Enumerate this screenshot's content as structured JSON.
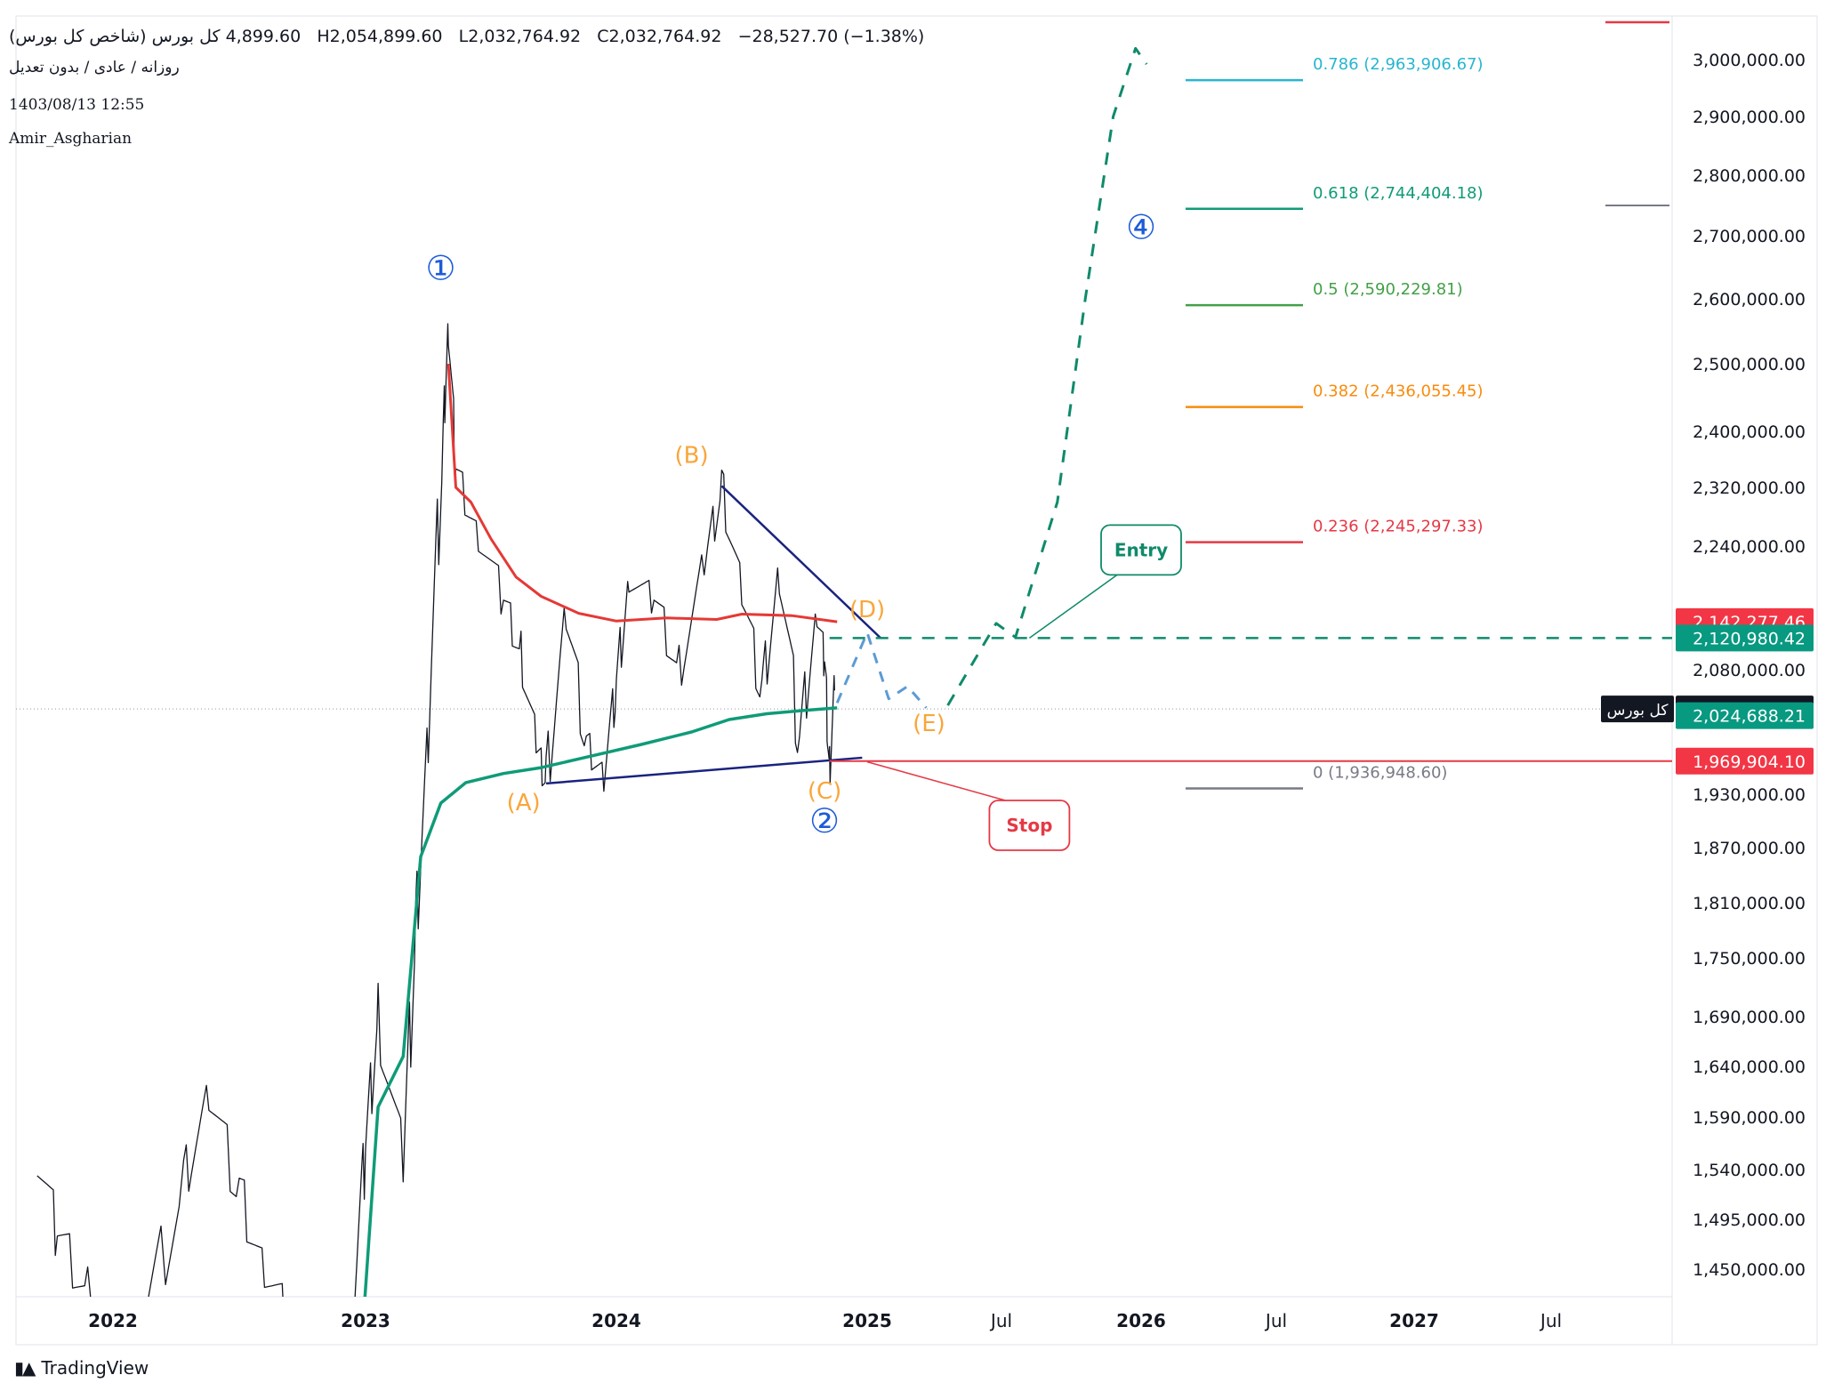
{
  "header": {
    "symbol": "کل بورس (شاخص کل بورس)",
    "open": "4,899.60",
    "high": "H2,054,899.60",
    "low": "L2,032,764.92",
    "close": "C2,032,764.92",
    "change": "−28,527.70 (−1.38%)",
    "subtitle": "روزانه / عادی / بدون تعدیل",
    "date": "1403/08/13 12:55",
    "author": "Amir_Asgharian"
  },
  "brand": {
    "name": "TradingView",
    "logo_icon": "tradingview-logo-icon"
  },
  "colors": {
    "price": "#131722",
    "red_ma": "#e53935",
    "green_ma": "#0f9b78",
    "trendline": "#1a237e",
    "projection": "#0f8a6a",
    "alt_path": "#5b9bd5",
    "wave_label": "#f9a63a",
    "count_label": "#1e5bd8",
    "stop": "#e53945"
  },
  "chart_data": {
    "type": "line",
    "axis": {
      "ylim": [
        1420000,
        3040000
      ],
      "grid": false,
      "position": "right"
    },
    "y_ticks": [
      "3,000,000.00",
      "2,900,000.00",
      "2,800,000.00",
      "2,700,000.00",
      "2,600,000.00",
      "2,500,000.00",
      "2,400,000.00",
      "2,320,000.00",
      "2,240,000.00",
      "2,080,000.00",
      "1,930,000.00",
      "1,870,000.00",
      "1,810,000.00",
      "1,750,000.00",
      "1,690,000.00",
      "1,640,000.00",
      "1,590,000.00",
      "1,540,000.00",
      "1,495,000.00",
      "1,450,000.00"
    ],
    "x_ticks": [
      "2022",
      "2023",
      "2024",
      "2025",
      "Jul",
      "2026",
      "Jul",
      "2027",
      "Jul"
    ],
    "price_labels": [
      {
        "text": "2,142,277.46",
        "y": 2142277.46,
        "color": "#f23645"
      },
      {
        "text": "2,120,980.42",
        "y": 2120980.42,
        "color": "#089981"
      },
      {
        "text": "2,032,764.92",
        "y": 2032764.92,
        "color": "#131722",
        "symbol": "کل بورس"
      },
      {
        "text": "2,024,688.21",
        "y": 2024688.21,
        "color": "#089981"
      },
      {
        "text": "1,969,904.10",
        "y": 1969904.1,
        "color": "#f23645"
      }
    ],
    "fib_levels": [
      {
        "label": "0.786 (2,963,906.67)",
        "value": 2963906.67,
        "color": "#26b6cf"
      },
      {
        "label": "0.618 (2,744,404.18)",
        "value": 2744404.18,
        "color": "#0f9b78"
      },
      {
        "label": "0.5 (2,590,229.81)",
        "value": 2590229.81,
        "color": "#43a047"
      },
      {
        "label": "0.382 (2,436,055.45)",
        "value": 2436055.45,
        "color": "#f98b0c"
      },
      {
        "label": "0.236 (2,245,297.33)",
        "value": 2245297.33,
        "color": "#e53945"
      },
      {
        "label": "0 (1,936,948.60)",
        "value": 1936948.6,
        "color": "#787b86"
      }
    ],
    "series": [
      {
        "name": "price",
        "values": [
          [
            2021.7,
            1560000
          ],
          [
            2021.78,
            1480000
          ],
          [
            2021.9,
            1430000
          ],
          [
            2022.1,
            1380000
          ],
          [
            2022.28,
            1530000
          ],
          [
            2022.38,
            1610000
          ],
          [
            2022.5,
            1520000
          ],
          [
            2022.6,
            1450000
          ],
          [
            2022.7,
            1400000
          ],
          [
            2022.95,
            1420000
          ],
          [
            2023.0,
            1560000
          ],
          [
            2023.05,
            1690000
          ],
          [
            2023.15,
            1540000
          ],
          [
            2023.2,
            1780000
          ],
          [
            2023.25,
            2000000
          ],
          [
            2023.31,
            2400000
          ],
          [
            2023.33,
            2560000
          ],
          [
            2023.36,
            2340000
          ],
          [
            2023.45,
            2260000
          ],
          [
            2023.55,
            2170000
          ],
          [
            2023.62,
            2100000
          ],
          [
            2023.68,
            1985000
          ],
          [
            2023.72,
            1945000
          ],
          [
            2023.8,
            2150000
          ],
          [
            2023.88,
            1990000
          ],
          [
            2023.95,
            1955000
          ],
          [
            2024.0,
            2060000
          ],
          [
            2024.05,
            2200000
          ],
          [
            2024.15,
            2170000
          ],
          [
            2024.25,
            2080000
          ],
          [
            2024.35,
            2210000
          ],
          [
            2024.42,
            2320000
          ],
          [
            2024.5,
            2180000
          ],
          [
            2024.58,
            2050000
          ],
          [
            2024.65,
            2210000
          ],
          [
            2024.73,
            1990000
          ],
          [
            2024.8,
            2160000
          ],
          [
            2024.83,
            2090000
          ],
          [
            2024.85,
            1960000
          ],
          [
            2024.87,
            2055000
          ]
        ]
      },
      {
        "name": "red-ma",
        "values": [
          [
            2023.33,
            2500000
          ],
          [
            2023.36,
            2320000
          ],
          [
            2023.42,
            2300000
          ],
          [
            2023.5,
            2250000
          ],
          [
            2023.6,
            2200000
          ],
          [
            2023.7,
            2175000
          ],
          [
            2023.85,
            2153000
          ],
          [
            2024.0,
            2143000
          ],
          [
            2024.2,
            2147000
          ],
          [
            2024.4,
            2145000
          ],
          [
            2024.5,
            2152000
          ],
          [
            2024.7,
            2150000
          ],
          [
            2024.88,
            2142000
          ]
        ]
      },
      {
        "name": "green-ma",
        "values": [
          [
            2022.99,
            1400000
          ],
          [
            2023.05,
            1600000
          ],
          [
            2023.15,
            1650000
          ],
          [
            2023.22,
            1860000
          ],
          [
            2023.3,
            1920000
          ],
          [
            2023.4,
            1944000
          ],
          [
            2023.55,
            1955000
          ],
          [
            2023.7,
            1962000
          ],
          [
            2023.9,
            1976000
          ],
          [
            2024.1,
            1990000
          ],
          [
            2024.3,
            2005000
          ],
          [
            2024.45,
            2020000
          ],
          [
            2024.6,
            2027000
          ],
          [
            2024.75,
            2031000
          ],
          [
            2024.88,
            2034000
          ]
        ]
      },
      {
        "name": "main-projection",
        "values": [
          [
            2025.3,
            2037000
          ],
          [
            2025.48,
            2140000
          ],
          [
            2025.55,
            2122000
          ],
          [
            2025.7,
            2300000
          ],
          [
            2025.8,
            2600000
          ],
          [
            2025.9,
            2900000
          ],
          [
            2025.98,
            3020000
          ],
          [
            2026.02,
            2992000
          ]
        ]
      },
      {
        "name": "alt-projection",
        "values": [
          [
            2024.88,
            2040000
          ],
          [
            2025.0,
            2128000
          ],
          [
            2025.08,
            2045000
          ],
          [
            2025.15,
            2060000
          ],
          [
            2025.22,
            2034000
          ]
        ]
      }
    ],
    "trendlines": [
      {
        "from": [
          2023.72,
          1943000
        ],
        "to": [
          2024.98,
          1974000
        ]
      },
      {
        "from": [
          2024.42,
          2322000
        ],
        "to": [
          2025.05,
          2121000
        ]
      }
    ],
    "horizontal_lines": [
      {
        "value": 2120980.42,
        "style": "dashed",
        "color": "#0f8a6a",
        "from": 2024.85
      },
      {
        "value": 1969904.1,
        "style": "solid",
        "color": "#e53945",
        "from": 2024.85
      }
    ],
    "wave_labels": [
      {
        "text": "①",
        "x": 2023.3,
        "y": 2630000,
        "color": "#1e5bd8"
      },
      {
        "text": "(B)",
        "x": 2024.3,
        "y": 2355000,
        "color": "#f9a63a"
      },
      {
        "text": "(D)",
        "x": 2025.0,
        "y": 2148000,
        "color": "#f9a63a"
      },
      {
        "text": "(E)",
        "x": 2025.23,
        "y": 2006000,
        "color": "#f9a63a"
      },
      {
        "text": "(A)",
        "x": 2023.63,
        "y": 1912000,
        "color": "#f9a63a"
      },
      {
        "text": "(C)",
        "x": 2024.83,
        "y": 1925000,
        "color": "#f9a63a"
      },
      {
        "text": "②",
        "x": 2024.83,
        "y": 1887000,
        "color": "#1e5bd8"
      },
      {
        "text": "④",
        "x": 2026.0,
        "y": 2695000,
        "color": "#1e5bd8"
      }
    ],
    "callouts": [
      {
        "text": "Entry",
        "x": 2026.0,
        "y": 2235000,
        "color": "#0f8a6a",
        "target": [
          2025.6,
          2121000
        ]
      },
      {
        "text": "Stop",
        "x": 2025.6,
        "y": 1895000,
        "color": "#e53945",
        "target": [
          2025.0,
          1969000
        ]
      }
    ]
  }
}
